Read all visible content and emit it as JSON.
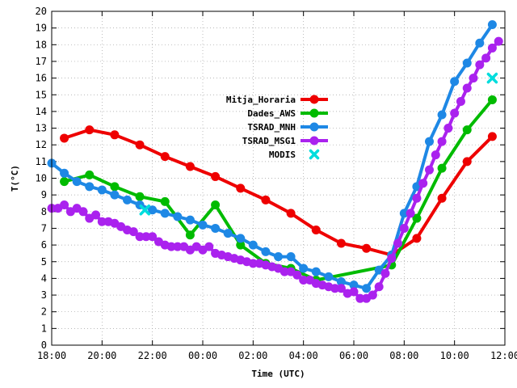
{
  "chart_data": {
    "type": "line",
    "xlabel": "Time (UTC)",
    "ylabel": "T(°C)",
    "x_unit": "hours since 18:00 UTC",
    "xlim": [
      0,
      18
    ],
    "ylim": [
      0,
      20
    ],
    "x_tick_labels": [
      "18:00",
      "20:00",
      "22:00",
      "00:00",
      "02:00",
      "04:00",
      "06:00",
      "08:00",
      "10:00",
      "12:00"
    ],
    "y_ticks": [
      0,
      1,
      2,
      3,
      4,
      5,
      6,
      7,
      8,
      9,
      10,
      11,
      12,
      13,
      14,
      15,
      16,
      17,
      18,
      19,
      20
    ],
    "grid": true,
    "legend_position": "center",
    "series": [
      {
        "name": "Mitja_Horaria",
        "color": "#ee0000",
        "marker": "circle",
        "points": [
          [
            0.5,
            12.4
          ],
          [
            1.5,
            12.9
          ],
          [
            2.5,
            12.6
          ],
          [
            3.5,
            12.0
          ],
          [
            4.5,
            11.3
          ],
          [
            5.5,
            10.7
          ],
          [
            6.5,
            10.1
          ],
          [
            7.5,
            9.4
          ],
          [
            8.5,
            8.7
          ],
          [
            9.5,
            7.9
          ],
          [
            10.5,
            6.9
          ],
          [
            11.5,
            6.1
          ],
          [
            12.5,
            5.8
          ],
          [
            13.5,
            5.4
          ],
          [
            14.5,
            6.4
          ],
          [
            15.5,
            8.8
          ],
          [
            16.5,
            11.0
          ],
          [
            17.5,
            12.5
          ]
        ]
      },
      {
        "name": "Dades_AWS",
        "color": "#00bb00",
        "marker": "circle",
        "points": [
          [
            0.5,
            9.8
          ],
          [
            1.5,
            10.2
          ],
          [
            2.5,
            9.5
          ],
          [
            3.5,
            8.9
          ],
          [
            4.5,
            8.6
          ],
          [
            5.5,
            6.6
          ],
          [
            6.5,
            8.4
          ],
          [
            7.5,
            6.0
          ],
          [
            8.5,
            4.9
          ],
          [
            9.5,
            4.6
          ],
          [
            10.5,
            3.9
          ],
          [
            13.5,
            4.8
          ],
          [
            14.5,
            7.6
          ],
          [
            15.5,
            10.6
          ],
          [
            16.5,
            12.9
          ],
          [
            17.5,
            14.7
          ]
        ]
      },
      {
        "name": "TSRAD_MNH",
        "color": "#1e88e5",
        "marker": "circle",
        "points": [
          [
            0,
            10.9
          ],
          [
            0.5,
            10.3
          ],
          [
            1,
            9.8
          ],
          [
            1.5,
            9.5
          ],
          [
            2,
            9.3
          ],
          [
            2.5,
            9.0
          ],
          [
            3,
            8.7
          ],
          [
            3.5,
            8.4
          ],
          [
            4,
            8.1
          ],
          [
            4.5,
            7.9
          ],
          [
            5,
            7.7
          ],
          [
            5.5,
            7.5
          ],
          [
            6,
            7.2
          ],
          [
            6.5,
            7.0
          ],
          [
            7,
            6.7
          ],
          [
            7.5,
            6.4
          ],
          [
            8,
            6.0
          ],
          [
            8.5,
            5.6
          ],
          [
            9,
            5.3
          ],
          [
            9.5,
            5.3
          ],
          [
            10,
            4.6
          ],
          [
            10.5,
            4.4
          ],
          [
            11,
            4.1
          ],
          [
            11.5,
            3.8
          ],
          [
            12,
            3.6
          ],
          [
            12.5,
            3.4
          ],
          [
            13,
            4.5
          ],
          [
            13.5,
            5.4
          ],
          [
            14,
            7.9
          ],
          [
            14.5,
            9.5
          ],
          [
            15,
            12.2
          ],
          [
            15.5,
            13.8
          ],
          [
            16,
            15.8
          ],
          [
            16.5,
            16.9
          ],
          [
            17,
            18.1
          ],
          [
            17.5,
            19.2
          ]
        ]
      },
      {
        "name": "TSRAD_MSG1",
        "color": "#aa22ee",
        "marker": "circle",
        "points": [
          [
            0,
            8.2
          ],
          [
            0.25,
            8.2
          ],
          [
            0.5,
            8.4
          ],
          [
            0.75,
            8.0
          ],
          [
            1,
            8.2
          ],
          [
            1.25,
            8.0
          ],
          [
            1.5,
            7.6
          ],
          [
            1.75,
            7.8
          ],
          [
            2,
            7.4
          ],
          [
            2.25,
            7.4
          ],
          [
            2.5,
            7.3
          ],
          [
            2.75,
            7.1
          ],
          [
            3,
            6.9
          ],
          [
            3.25,
            6.8
          ],
          [
            3.5,
            6.5
          ],
          [
            3.75,
            6.5
          ],
          [
            4,
            6.5
          ],
          [
            4.25,
            6.2
          ],
          [
            4.5,
            6.0
          ],
          [
            4.75,
            5.9
          ],
          [
            5,
            5.9
          ],
          [
            5.25,
            5.9
          ],
          [
            5.5,
            5.7
          ],
          [
            5.75,
            5.9
          ],
          [
            6,
            5.7
          ],
          [
            6.25,
            5.9
          ],
          [
            6.5,
            5.5
          ],
          [
            6.75,
            5.4
          ],
          [
            7,
            5.3
          ],
          [
            7.25,
            5.2
          ],
          [
            7.5,
            5.1
          ],
          [
            7.75,
            5.0
          ],
          [
            8,
            4.9
          ],
          [
            8.25,
            4.9
          ],
          [
            8.5,
            4.8
          ],
          [
            8.75,
            4.7
          ],
          [
            9,
            4.6
          ],
          [
            9.25,
            4.4
          ],
          [
            9.5,
            4.4
          ],
          [
            9.75,
            4.2
          ],
          [
            10,
            3.9
          ],
          [
            10.25,
            3.9
          ],
          [
            10.5,
            3.7
          ],
          [
            10.75,
            3.6
          ],
          [
            11,
            3.5
          ],
          [
            11.25,
            3.4
          ],
          [
            11.5,
            3.4
          ],
          [
            11.75,
            3.1
          ],
          [
            12,
            3.2
          ],
          [
            12.25,
            2.8
          ],
          [
            12.5,
            2.8
          ],
          [
            12.75,
            3.0
          ],
          [
            13,
            3.5
          ],
          [
            13.25,
            4.3
          ],
          [
            13.5,
            5.2
          ],
          [
            13.75,
            6.1
          ],
          [
            14,
            7.0
          ],
          [
            14.25,
            7.9
          ],
          [
            14.5,
            8.8
          ],
          [
            14.75,
            9.7
          ],
          [
            15,
            10.5
          ],
          [
            15.25,
            11.4
          ],
          [
            15.5,
            12.2
          ],
          [
            15.75,
            13.0
          ],
          [
            16,
            13.9
          ],
          [
            16.25,
            14.6
          ],
          [
            16.5,
            15.4
          ],
          [
            16.75,
            16.0
          ],
          [
            17,
            16.8
          ],
          [
            17.25,
            17.2
          ],
          [
            17.5,
            17.8
          ],
          [
            17.75,
            18.2
          ]
        ]
      },
      {
        "name": "MODIS",
        "color": "#00dddd",
        "marker": "x",
        "points": [
          [
            3.7,
            8.1
          ],
          [
            17.5,
            16.0
          ]
        ]
      }
    ]
  }
}
